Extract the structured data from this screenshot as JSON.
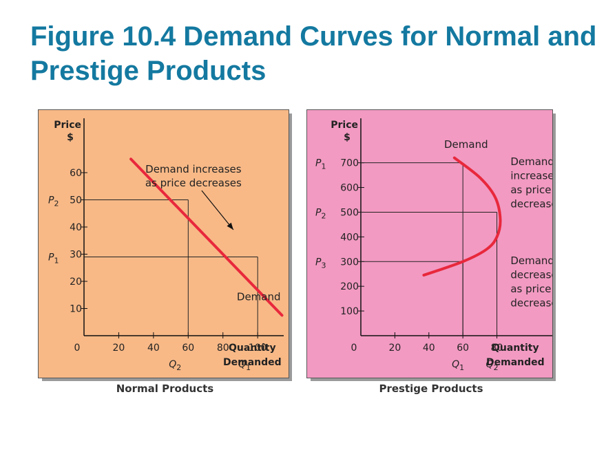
{
  "slide": {
    "title": "Figure 10.4 Demand Curves for Normal and Prestige Products"
  },
  "colors": {
    "title": "#1479a0",
    "normal_bg": "#f8b987",
    "prestige_bg": "#f29ac2",
    "curve": "#e8283c"
  },
  "chart_data": [
    {
      "type": "line",
      "caption": "Normal Products",
      "ylabel_line1": "Price",
      "ylabel_line2": "$",
      "xlabel_line1": "Quantity",
      "xlabel_line2": "Demanded",
      "origin_label": "0",
      "xlim": [
        0,
        115
      ],
      "ylim": [
        0,
        80
      ],
      "x_ticks": [
        20,
        40,
        60,
        80,
        100
      ],
      "y_ticks": [
        10,
        20,
        30,
        40,
        50,
        60
      ],
      "series": [
        {
          "name": "Demand",
          "x": [
            27,
            114
          ],
          "y": [
            65,
            7.5
          ]
        }
      ],
      "curve_label": "Demand",
      "curve_label_at": {
        "x": 88,
        "y": 13
      },
      "reference_points": [
        {
          "x": 60,
          "y": 50,
          "xname": "Q",
          "xsub": "2",
          "yname": "P",
          "ysub": "2"
        },
        {
          "x": 100,
          "y": 29,
          "xname": "Q",
          "xsub": "1",
          "yname": "P",
          "ysub": "1"
        }
      ],
      "annotation": {
        "line1": "Demand increases",
        "line2": "as price decreases",
        "anchor": {
          "x": 63,
          "y": 60
        },
        "arrow_to": {
          "x": 86,
          "y": 39
        }
      }
    },
    {
      "type": "line",
      "caption": "Prestige Products",
      "ylabel_line1": "Price",
      "ylabel_line2": "$",
      "xlabel_line1": "Quantity",
      "xlabel_line2": "Demanded",
      "origin_label": "0",
      "xlim": [
        0,
        115
      ],
      "ylim": [
        0,
        880
      ],
      "x_ticks": [
        20,
        40,
        60,
        80
      ],
      "y_ticks": [
        100,
        200,
        300,
        400,
        500,
        600,
        700
      ],
      "series": [
        {
          "name": "Demand",
          "x": [
            55,
            70,
            79,
            82,
            80,
            74,
            60,
            37
          ],
          "y": [
            720,
            640,
            560,
            470,
            400,
            350,
            300,
            245
          ]
        }
      ],
      "curve_label": "Demand",
      "curve_label_at": {
        "x": 49,
        "y": 760
      },
      "reference_points": [
        {
          "x": 60,
          "y": 700,
          "yname": "P",
          "ysub": "1"
        },
        {
          "x": 80,
          "y": 500,
          "yname": "P",
          "ysub": "2"
        },
        {
          "x": 60,
          "y": 300,
          "yname": "P",
          "ysub": "3"
        }
      ],
      "x_markers": [
        {
          "x": 60,
          "xname": "Q",
          "xsub": "1"
        },
        {
          "x": 80,
          "xname": "Q",
          "xsub": "2"
        }
      ],
      "notes": [
        {
          "lines": [
            "Demand",
            "increases",
            "as price",
            "decreases"
          ],
          "at": {
            "x": 88,
            "y": 690
          }
        },
        {
          "lines": [
            "Demand",
            "decreases",
            "as price",
            "decreases"
          ],
          "at": {
            "x": 88,
            "y": 290
          }
        }
      ]
    }
  ]
}
